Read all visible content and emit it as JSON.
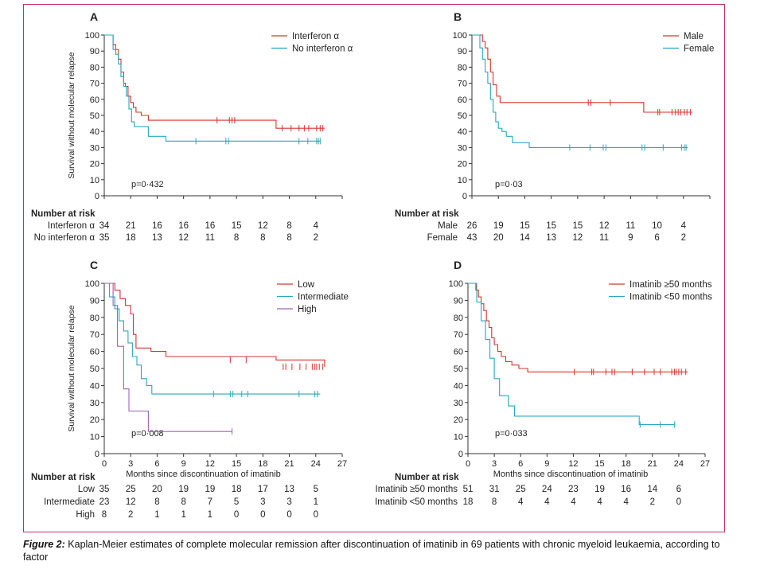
{
  "caption": {
    "label": "Figure 2:",
    "text": "Kaplan-Meier estimates of complete molecular remission after discontinuation of imatinib in 69 patients with chronic myeloid leukaemia, according to factor"
  },
  "colors": {
    "red": "#d9342b",
    "cyan": "#2aa6be",
    "purple": "#9b63b5",
    "frame": "#c4306a"
  },
  "chart_data": [
    {
      "type": "line",
      "panel": "A",
      "ylabel": "Survival without molecular relapse",
      "xlabel": "",
      "xlim": [
        0,
        27
      ],
      "ylim": [
        0,
        100
      ],
      "xticks": [],
      "yticks": [
        0,
        10,
        20,
        30,
        40,
        50,
        60,
        70,
        80,
        90,
        100
      ],
      "pvalue": "p=0·432",
      "risk_title": "Number at risk",
      "risk_times": [
        0,
        3,
        6,
        9,
        12,
        15,
        18,
        21,
        24
      ],
      "series": [
        {
          "name": "Interferon α",
          "color": "red",
          "x": [
            0,
            1,
            1.3,
            1.6,
            1.9,
            2.2,
            2.4,
            2.7,
            3,
            3.3,
            3.6,
            4.2,
            5,
            19.5,
            25
          ],
          "y": [
            100,
            94,
            91,
            85,
            77,
            70,
            68,
            62,
            58,
            55,
            52,
            50,
            47,
            42,
            42
          ],
          "censor_x": [
            12.8,
            14.2,
            14.5,
            14.8,
            20.2,
            21.2,
            22.1,
            22.7,
            23.2,
            24.1,
            24.5,
            24.8
          ],
          "censor_y": [
            47,
            47,
            47,
            47,
            42,
            42,
            42,
            42,
            42,
            42,
            42,
            42
          ],
          "risk": [
            34,
            21,
            16,
            16,
            16,
            15,
            12,
            8,
            4
          ]
        },
        {
          "name": "No interferon α",
          "color": "cyan",
          "x": [
            0,
            1,
            1.3,
            1.6,
            1.9,
            2.2,
            2.5,
            2.8,
            3.1,
            3.4,
            3.8,
            5,
            7,
            24.5
          ],
          "y": [
            100,
            91,
            88,
            82,
            74,
            68,
            62,
            54,
            46,
            43,
            43,
            37,
            34,
            34
          ],
          "censor_x": [
            10.4,
            13.8,
            14.1,
            22.1,
            23.1,
            24.1,
            24.3,
            24.5
          ],
          "censor_y": [
            34,
            34,
            34,
            34,
            34,
            34,
            34,
            34
          ],
          "risk": [
            35,
            18,
            13,
            12,
            11,
            8,
            8,
            8,
            2
          ]
        }
      ]
    },
    {
      "type": "line",
      "panel": "B",
      "ylabel": "",
      "xlabel": "",
      "xlim": [
        0,
        27
      ],
      "ylim": [
        0,
        100
      ],
      "xticks": [],
      "yticks": [
        0,
        10,
        20,
        30,
        40,
        50,
        60,
        70,
        80,
        90,
        100
      ],
      "pvalue": "p=0·03",
      "risk_title": "Number at risk",
      "risk_times": [
        0,
        3,
        6,
        9,
        12,
        15,
        18,
        21,
        24
      ],
      "series": [
        {
          "name": "Male",
          "color": "red",
          "x": [
            0,
            1.2,
            1.5,
            1.8,
            2.1,
            2.4,
            2.8,
            3.2,
            4.5,
            19.5,
            25
          ],
          "y": [
            100,
            96,
            92,
            85,
            77,
            69,
            62,
            58,
            58,
            52,
            52
          ],
          "censor_x": [
            13.2,
            13.5,
            15.7,
            21.1,
            21.3,
            22.7,
            23.1,
            23.4,
            23.7,
            24.1,
            24.4,
            24.8
          ],
          "censor_y": [
            58,
            58,
            58,
            52,
            52,
            52,
            52,
            52,
            52,
            52,
            52,
            52
          ],
          "risk": [
            26,
            19,
            15,
            15,
            15,
            12,
            11,
            10,
            4
          ]
        },
        {
          "name": "Female",
          "color": "cyan",
          "x": [
            0,
            0.9,
            1.2,
            1.5,
            1.8,
            2.1,
            2.4,
            2.7,
            3,
            3.4,
            3.9,
            4.6,
            6.5,
            24.5
          ],
          "y": [
            100,
            92,
            85,
            77,
            70,
            60,
            52,
            46,
            42,
            40,
            37,
            33,
            30,
            30
          ],
          "censor_x": [
            11.1,
            13.4,
            14.9,
            15.2,
            19.3,
            19.6,
            21.7,
            23.8,
            24.1,
            24.3
          ],
          "censor_y": [
            30,
            30,
            30,
            30,
            30,
            30,
            30,
            30,
            30,
            30
          ],
          "risk": [
            43,
            20,
            14,
            13,
            12,
            11,
            9,
            6,
            2
          ]
        }
      ]
    },
    {
      "type": "line",
      "panel": "C",
      "ylabel": "Survival without molecular relapse",
      "xlabel": "Months since discontinuation of imatinib",
      "xlim": [
        0,
        27
      ],
      "ylim": [
        0,
        100
      ],
      "xticks": [
        0,
        3,
        6,
        9,
        12,
        15,
        18,
        21,
        24,
        27
      ],
      "yticks": [
        0,
        10,
        20,
        30,
        40,
        50,
        60,
        70,
        80,
        90,
        100
      ],
      "pvalue": "p=0·008",
      "risk_title": "Number at risk",
      "risk_times": [
        0,
        3,
        6,
        9,
        12,
        15,
        18,
        21,
        24
      ],
      "series": [
        {
          "name": "Low",
          "color": "red",
          "x": [
            0,
            1.2,
            1.8,
            2.4,
            3,
            3.3,
            3.6,
            5.3,
            7,
            19.5,
            25
          ],
          "y": [
            100,
            96,
            91,
            87,
            82,
            70,
            62,
            60,
            57,
            55,
            51
          ],
          "censor_x": [
            14.3,
            16.1,
            20.3,
            20.6,
            21.3,
            22.2,
            22.9,
            23.6,
            23.9,
            24.1,
            24.4,
            24.8
          ],
          "censor_y": [
            55,
            55,
            51,
            51,
            51,
            51,
            51,
            51,
            51,
            51,
            51,
            51
          ],
          "risk": [
            35,
            25,
            20,
            19,
            19,
            18,
            17,
            13,
            5
          ]
        },
        {
          "name": "Intermediate",
          "color": "cyan",
          "x": [
            0,
            0.6,
            1.2,
            1.7,
            2.2,
            2.7,
            3.2,
            3.7,
            4.2,
            4.8,
            5.4,
            24.5
          ],
          "y": [
            100,
            92,
            85,
            78,
            72,
            65,
            57,
            52,
            44,
            40,
            35,
            35
          ],
          "censor_x": [
            12.4,
            14.3,
            14.6,
            15.6,
            16.3,
            22.1,
            23.9,
            24.2
          ],
          "censor_y": [
            35,
            35,
            35,
            35,
            35,
            35,
            35,
            35
          ],
          "risk": [
            23,
            12,
            8,
            8,
            7,
            5,
            3,
            3,
            1
          ]
        },
        {
          "name": "High",
          "color": "purple",
          "x": [
            0,
            1,
            1.5,
            2.2,
            2.8,
            5,
            14.5
          ],
          "y": [
            100,
            87,
            63,
            38,
            25,
            13,
            13
          ],
          "censor_x": [
            14.5
          ],
          "censor_y": [
            13
          ],
          "risk": [
            8,
            2,
            1,
            1,
            1,
            0,
            0,
            0,
            0
          ]
        }
      ]
    },
    {
      "type": "line",
      "panel": "D",
      "ylabel": "",
      "xlabel": "Months since discontinuation of imatinib",
      "xlim": [
        0,
        27
      ],
      "ylim": [
        0,
        100
      ],
      "xticks": [
        0,
        3,
        6,
        9,
        12,
        15,
        18,
        21,
        24,
        27
      ],
      "yticks": [
        0,
        10,
        20,
        30,
        40,
        50,
        60,
        70,
        80,
        90,
        100
      ],
      "pvalue": "p=0·033",
      "risk_title": "Number at risk",
      "risk_times": [
        0,
        3,
        6,
        9,
        12,
        15,
        18,
        21,
        24
      ],
      "series": [
        {
          "name": "Imatinib ≥50 months",
          "color": "red",
          "x": [
            0,
            0.9,
            1.2,
            1.5,
            1.8,
            2.1,
            2.4,
            2.7,
            3,
            3.4,
            3.8,
            4.3,
            5,
            5.8,
            6.8,
            25
          ],
          "y": [
            100,
            96,
            92,
            88,
            84,
            78,
            74,
            68,
            64,
            60,
            57,
            54,
            52,
            50,
            48,
            48
          ],
          "censor_x": [
            12.1,
            14.1,
            14.3,
            15.7,
            16.4,
            16.7,
            18.7,
            20.1,
            21.2,
            21.9,
            23.2,
            23.5,
            23.7,
            24,
            24.3,
            24.8
          ],
          "censor_y": [
            48,
            48,
            48,
            48,
            48,
            48,
            48,
            48,
            48,
            48,
            48,
            48,
            48,
            48,
            48,
            48
          ],
          "risk": [
            51,
            31,
            25,
            24,
            23,
            19,
            16,
            14,
            6
          ]
        },
        {
          "name": "Imatinib <50 months",
          "color": "cyan",
          "x": [
            0,
            1,
            1.5,
            2,
            2.5,
            3,
            3.6,
            4.6,
            5.3,
            19.5,
            23.5
          ],
          "y": [
            100,
            89,
            78,
            67,
            56,
            44,
            34,
            28,
            22,
            17,
            17
          ],
          "censor_x": [
            19.6,
            21.9,
            23.5
          ],
          "censor_y": [
            17,
            17,
            17
          ],
          "risk": [
            18,
            8,
            4,
            4,
            4,
            4,
            4,
            2,
            0
          ]
        }
      ]
    }
  ]
}
